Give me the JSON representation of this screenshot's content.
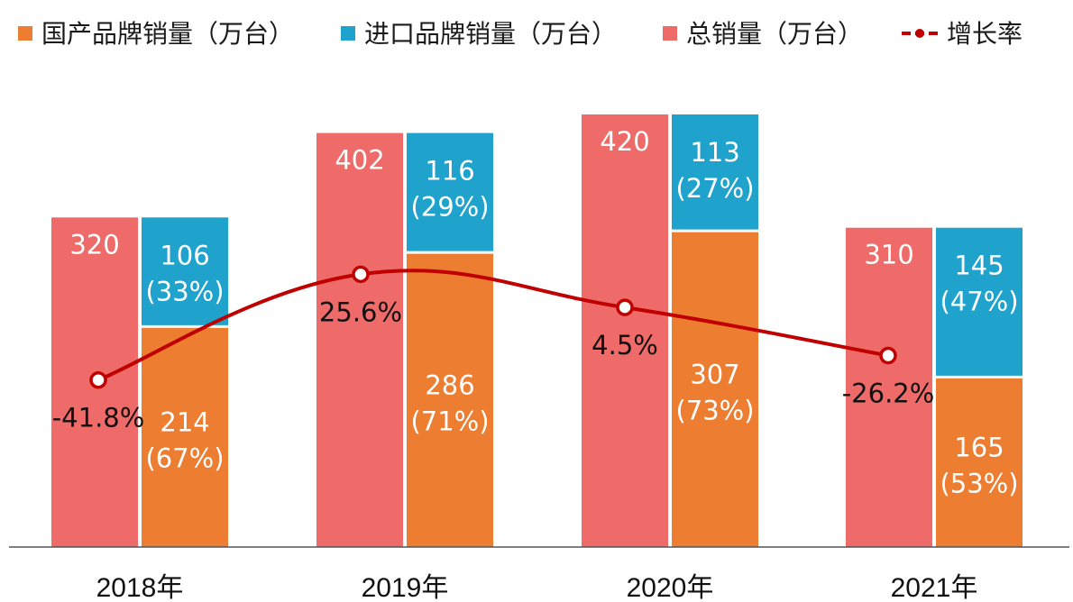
{
  "chart_data": {
    "type": "bar",
    "categories": [
      "2018年",
      "2019年",
      "2020年",
      "2021年"
    ],
    "series": [
      {
        "name": "国产品牌销量（万台）",
        "values": [
          214,
          286,
          307,
          165
        ],
        "shares": [
          "(67%)",
          "(71%)",
          "(73%)",
          "(53%)"
        ],
        "color": "#ED7D31"
      },
      {
        "name": "进口品牌销量（万台）",
        "values": [
          106,
          116,
          113,
          145
        ],
        "shares": [
          "(33%)",
          "(29%)",
          "(27%)",
          "(47%)"
        ],
        "color": "#1FA3CC"
      },
      {
        "name": "总销量（万台）",
        "values": [
          320,
          402,
          420,
          310
        ],
        "color": "#EF6B69"
      },
      {
        "name": "增长率",
        "type": "line",
        "values": [
          -41.8,
          25.6,
          4.5,
          -26.2
        ],
        "labels": [
          "-41.8%",
          "25.6%",
          "4.5%",
          "-26.2%"
        ],
        "color": "#C00000"
      }
    ],
    "ylim": [
      0,
      420
    ],
    "grid": false,
    "legend_position": "top"
  }
}
